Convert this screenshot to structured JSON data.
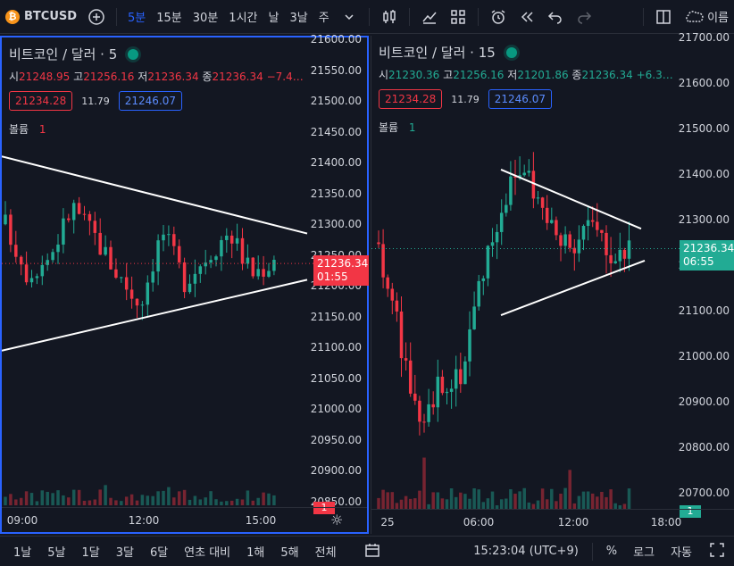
{
  "toolbar": {
    "symbol_logo": "₿",
    "symbol": "BTCUSD",
    "intervals": [
      "5분",
      "15분",
      "30분",
      "1시간",
      "날",
      "3날",
      "주"
    ],
    "active_interval": "5분",
    "layout_label": "이름"
  },
  "left_chart": {
    "title": "비트코인 / 달러 · 5",
    "ohlc": {
      "o_label": "시",
      "o": "21248.95",
      "h_label": "고",
      "h": "21256.16",
      "l_label": "저",
      "l": "21236.34",
      "c_label": "종",
      "c": "21236.34",
      "chg": "−7.4…"
    },
    "bid": "21234.28",
    "spread": "11.79",
    "ask": "21246.07",
    "volume_label": "볼륨",
    "volume_value": "1",
    "price_ticks": [
      "21600.00",
      "21550.00",
      "21500.00",
      "21450.00",
      "21400.00",
      "21350.00",
      "21300.00",
      "21250.00",
      "21200.00",
      "21150.00",
      "21100.00",
      "21050.00",
      "21000.00",
      "20950.00",
      "20900.00",
      "20850.00"
    ],
    "last_price": "21236.34",
    "countdown": "01:55",
    "volume_tag": "1",
    "time_ticks": [
      "09:00",
      "12:00",
      "15:00"
    ]
  },
  "right_chart": {
    "title": "비트코인 / 달러 · 15",
    "ohlc": {
      "o_label": "시",
      "o": "21230.36",
      "h_label": "고",
      "h": "21256.16",
      "l_label": "저",
      "l": "21201.86",
      "c_label": "종",
      "c": "21236.34",
      "chg": "+6.3…"
    },
    "bid": "21234.28",
    "spread": "11.79",
    "ask": "21246.07",
    "volume_label": "볼륨",
    "volume_value": "1",
    "price_ticks": [
      "21700.00",
      "21600.00",
      "21500.00",
      "21400.00",
      "21300.00",
      "21200.00",
      "21100.00",
      "21000.00",
      "20900.00",
      "20800.00",
      "20700.00"
    ],
    "last_price": "21236.34",
    "countdown": "06:55",
    "volume_tag": "1",
    "time_ticks": [
      "25",
      "06:00",
      "12:00",
      "18:00"
    ]
  },
  "bottombar": {
    "ranges": [
      "1날",
      "5날",
      "1달",
      "3달",
      "6달",
      "연초 대비",
      "1해",
      "5해",
      "전체"
    ],
    "clock": "15:23:04 (UTC+9)",
    "percent": "%",
    "log": "로그",
    "auto": "자동"
  },
  "colors": {
    "up": "#22ab94",
    "down": "#f23645",
    "accent": "#2962ff",
    "background": "#131722"
  }
}
